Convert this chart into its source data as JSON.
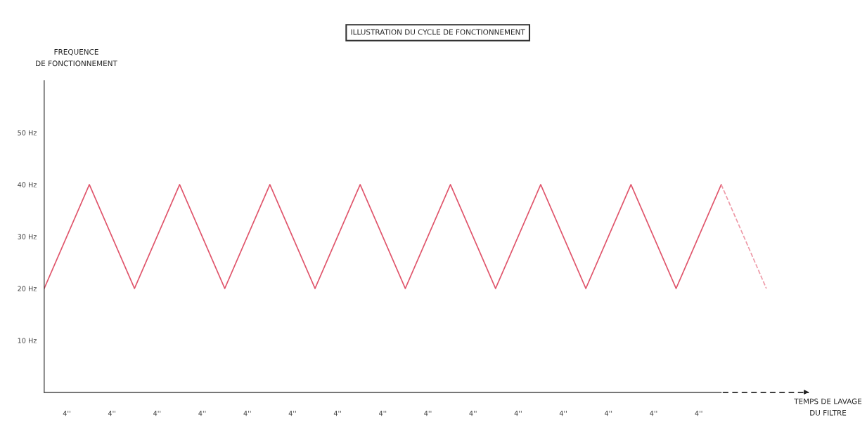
{
  "chart_data": {
    "type": "line",
    "title": "ILLUSTRATION DU CYCLE DE FONCTIONNEMENT",
    "ylabel": "FREQUENCE\nDE FONCTIONNEMENT",
    "xlabel": "TEMPS DE LAVAGE\nDU FILTRE",
    "categories": [
      null,
      null,
      null,
      null,
      null,
      null,
      null,
      null,
      null,
      null,
      null,
      null,
      null,
      null,
      null,
      null,
      null
    ],
    "series": [
      {
        "values": [
          20,
          40,
          20,
          40,
          20,
          40,
          20,
          40,
          20,
          40,
          20,
          40,
          20,
          40,
          20,
          40,
          null
        ],
        "color": "#e0566c",
        "line_style": "solid"
      },
      {
        "values": [
          null,
          null,
          null,
          null,
          null,
          null,
          null,
          null,
          null,
          null,
          null,
          null,
          null,
          null,
          null,
          40,
          20
        ],
        "color": "#ee9aa8",
        "line_style": "dashed"
      }
    ],
    "annotations": [
      "4''",
      "4''",
      "4''",
      "4''",
      "4''",
      "4''",
      "4''",
      "4''",
      "4''",
      "4''",
      "4''",
      "4''",
      "4''",
      "4''",
      "4''"
    ],
    "ylim": [
      0,
      60
    ],
    "yticks": [
      {
        "value": 10,
        "label": "10 Hz"
      },
      {
        "value": 20,
        "label": "20 Hz"
      },
      {
        "value": 30,
        "label": "30 Hz"
      },
      {
        "value": 40,
        "label": "40 Hz"
      },
      {
        "value": 50,
        "label": "50 Hz"
      }
    ],
    "grid": false,
    "legend": false,
    "marker": "none"
  }
}
